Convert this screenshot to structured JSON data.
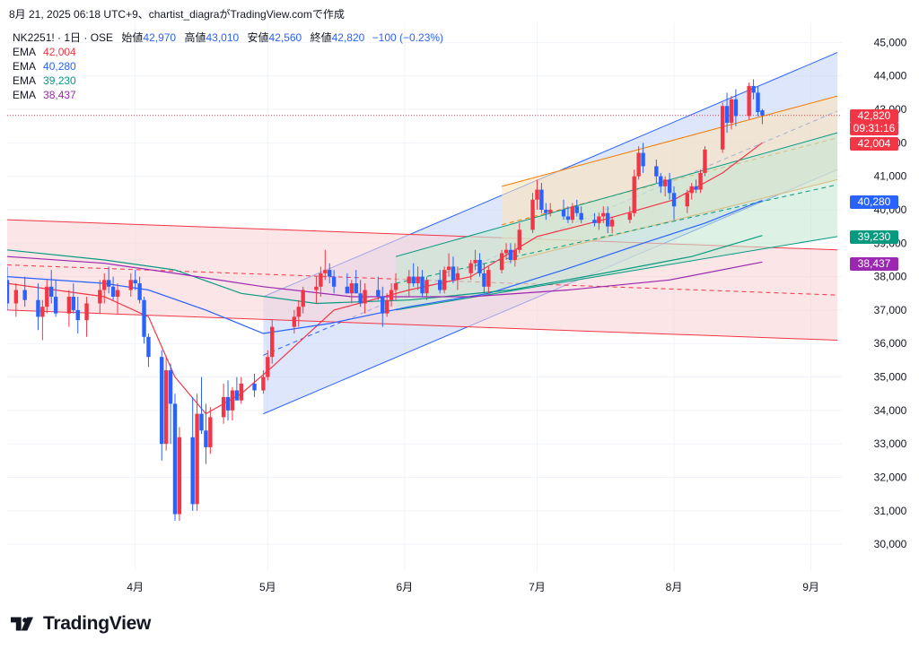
{
  "header": {
    "text": "8月 21, 2025 06:18 UTC+9、chartist_diagraがTradingView.comで作成"
  },
  "symbol": {
    "name": "NK2251! · 1日 · OSE",
    "open_label": "始値",
    "open": "42,970",
    "high_label": "高値",
    "high": "43,010",
    "low_label": "安値",
    "low": "42,560",
    "close_label": "終値",
    "close": "42,820",
    "change": "−100 (−0.23%)"
  },
  "legend": [
    {
      "label": "EMA",
      "value": "42,004",
      "color": "#f23645"
    },
    {
      "label": "EMA",
      "value": "40,280",
      "color": "#2962ff"
    },
    {
      "label": "EMA",
      "value": "39,230",
      "color": "#089981"
    },
    {
      "label": "EMA",
      "value": "38,437",
      "color": "#9c27b0"
    }
  ],
  "price_tags": [
    {
      "text": "42,820",
      "color": "#f23645"
    },
    {
      "text": "09:31:16",
      "color": "#f23645"
    },
    {
      "text": "42,004",
      "color": "#f23645"
    },
    {
      "text": "40,280",
      "color": "#2962ff"
    },
    {
      "text": "39,230",
      "color": "#089981"
    },
    {
      "text": "38,437",
      "color": "#9c27b0"
    }
  ],
  "footer": {
    "brand": "TradingView"
  },
  "chart_data": {
    "type": "candlestick",
    "y_axis": {
      "ticks": [
        30000,
        31000,
        32000,
        33000,
        34000,
        35000,
        36000,
        37000,
        38000,
        39000,
        40000,
        41000,
        42000,
        43000,
        44000,
        45000
      ],
      "tick_labels": [
        "30,000",
        "31,000",
        "32,000",
        "33,000",
        "34,000",
        "35,000",
        "36,000",
        "37,000",
        "38,000",
        "39,000",
        "40,000",
        "41,000",
        "42,000",
        "43,000",
        "44,000",
        "45,000"
      ],
      "ylim": [
        29200,
        45600
      ],
      "position": "right"
    },
    "x_axis": {
      "labels": [
        "4月",
        "5月",
        "6月",
        "7月",
        "8月",
        "9月"
      ],
      "label_dates": [
        "2025-04-01",
        "2025-05-01",
        "2025-06-01",
        "2025-07-01",
        "2025-08-01",
        "2025-09-01"
      ],
      "xlim": [
        "2025-03-03",
        "2025-09-08"
      ]
    },
    "grid": true,
    "last_price": 42820,
    "candles": [
      [
        "2025-03-03",
        37900,
        38300,
        37000,
        37200
      ],
      [
        "2025-03-05",
        37200,
        37800,
        36800,
        37600
      ],
      [
        "2025-03-07",
        37600,
        38000,
        37100,
        37300
      ],
      [
        "2025-03-10",
        37300,
        37800,
        36400,
        36800
      ],
      [
        "2025-03-11",
        36800,
        37300,
        36100,
        37100
      ],
      [
        "2025-03-12",
        37100,
        37900,
        36900,
        37700
      ],
      [
        "2025-03-13",
        37700,
        38200,
        37200,
        37400
      ],
      [
        "2025-03-14",
        37400,
        37900,
        36800,
        36900
      ],
      [
        "2025-03-17",
        36900,
        37600,
        36500,
        37400
      ],
      [
        "2025-03-18",
        37400,
        37800,
        36900,
        37000
      ],
      [
        "2025-03-19",
        37000,
        37400,
        36300,
        36700
      ],
      [
        "2025-03-21",
        36700,
        37400,
        36200,
        37200
      ],
      [
        "2025-03-24",
        37200,
        37900,
        36900,
        37600
      ],
      [
        "2025-03-25",
        37600,
        38100,
        37200,
        37900
      ],
      [
        "2025-03-26",
        37900,
        38300,
        37500,
        37700
      ],
      [
        "2025-03-27",
        37700,
        38000,
        37300,
        37400
      ],
      [
        "2025-03-28",
        37400,
        37800,
        36900,
        37600
      ],
      [
        "2025-03-31",
        37600,
        38100,
        37400,
        37900
      ],
      [
        "2025-04-01",
        37900,
        38200,
        37600,
        37800
      ],
      [
        "2025-04-02",
        37800,
        38000,
        37200,
        37300
      ],
      [
        "2025-04-03",
        37300,
        37400,
        36000,
        36200
      ],
      [
        "2025-04-04",
        36200,
        36300,
        35300,
        35600
      ],
      [
        "2025-04-07",
        35600,
        35800,
        32500,
        33000
      ],
      [
        "2025-04-08",
        33000,
        35600,
        32800,
        35200
      ],
      [
        "2025-04-09",
        35200,
        35400,
        33000,
        34200
      ],
      [
        "2025-04-10",
        34200,
        34500,
        30700,
        30900
      ],
      [
        "2025-04-11",
        30900,
        33500,
        30700,
        33200
      ],
      [
        "2025-04-14",
        33200,
        34400,
        31000,
        31200
      ],
      [
        "2025-04-15",
        31200,
        34500,
        31000,
        33900
      ],
      [
        "2025-04-16",
        33900,
        35000,
        33300,
        33400
      ],
      [
        "2025-04-17",
        33400,
        34200,
        32400,
        32900
      ],
      [
        "2025-04-18",
        32900,
        34100,
        32700,
        33800
      ],
      [
        "2025-04-21",
        33800,
        34800,
        33600,
        34400
      ],
      [
        "2025-04-22",
        34400,
        34900,
        33700,
        34000
      ],
      [
        "2025-04-23",
        34000,
        34700,
        33700,
        34600
      ],
      [
        "2025-04-24",
        34600,
        35000,
        34300,
        34300
      ],
      [
        "2025-04-25",
        34300,
        35000,
        34200,
        34800
      ],
      [
        "2025-04-28",
        34800,
        35100,
        34400,
        34600
      ],
      [
        "2025-04-30",
        34600,
        35200,
        34500,
        35000
      ],
      [
        "2025-05-01",
        35000,
        35800,
        34900,
        35600
      ],
      [
        "2025-05-02",
        35600,
        36700,
        35400,
        36500
      ],
      [
        "2025-05-07",
        36500,
        37000,
        36300,
        36800
      ],
      [
        "2025-05-08",
        36800,
        37300,
        36500,
        37100
      ],
      [
        "2025-05-09",
        37100,
        37700,
        36900,
        37600
      ],
      [
        "2025-05-12",
        37600,
        38000,
        37200,
        37700
      ],
      [
        "2025-05-13",
        37700,
        38300,
        37400,
        38100
      ],
      [
        "2025-05-14",
        38100,
        38800,
        37900,
        38200
      ],
      [
        "2025-05-15",
        38200,
        38400,
        37800,
        38000
      ],
      [
        "2025-05-16",
        38000,
        38200,
        37500,
        37700
      ],
      [
        "2025-05-19",
        37700,
        38100,
        37500,
        37500
      ],
      [
        "2025-05-20",
        37500,
        37900,
        37200,
        37800
      ],
      [
        "2025-05-21",
        37800,
        38200,
        37500,
        37500
      ],
      [
        "2025-05-22",
        37500,
        37900,
        37100,
        37200
      ],
      [
        "2025-05-23",
        37200,
        37800,
        36900,
        37600
      ],
      [
        "2025-05-26",
        37600,
        38000,
        37300,
        37400
      ],
      [
        "2025-05-27",
        37400,
        37700,
        36500,
        36900
      ],
      [
        "2025-05-28",
        36900,
        37500,
        36800,
        37300
      ],
      [
        "2025-05-29",
        37300,
        37800,
        37100,
        37600
      ],
      [
        "2025-05-30",
        37600,
        38100,
        37300,
        37800
      ],
      [
        "2025-06-02",
        37800,
        38200,
        37400,
        38000
      ],
      [
        "2025-06-03",
        38000,
        38400,
        37700,
        37800
      ],
      [
        "2025-06-04",
        37800,
        38300,
        37600,
        38000
      ],
      [
        "2025-06-05",
        38000,
        38200,
        37400,
        37500
      ],
      [
        "2025-06-06",
        37500,
        38000,
        37300,
        37900
      ],
      [
        "2025-06-09",
        37900,
        38200,
        37500,
        37600
      ],
      [
        "2025-06-10",
        37600,
        38300,
        37500,
        38200
      ],
      [
        "2025-06-11",
        38200,
        38700,
        38000,
        38300
      ],
      [
        "2025-06-12",
        38300,
        38600,
        37800,
        37900
      ],
      [
        "2025-06-13",
        37900,
        38300,
        37600,
        38100
      ],
      [
        "2025-06-16",
        38100,
        38500,
        37900,
        38400
      ],
      [
        "2025-06-17",
        38400,
        38800,
        38200,
        38500
      ],
      [
        "2025-06-18",
        38500,
        38700,
        38000,
        38100
      ],
      [
        "2025-06-19",
        38100,
        38400,
        37500,
        37700
      ],
      [
        "2025-06-20",
        37700,
        38300,
        37500,
        38200
      ],
      [
        "2025-06-23",
        38200,
        38800,
        38100,
        38700
      ],
      [
        "2025-06-24",
        38700,
        39000,
        38500,
        38800
      ],
      [
        "2025-06-25",
        38800,
        39000,
        38400,
        38500
      ],
      [
        "2025-06-26",
        38500,
        39000,
        38300,
        38800
      ],
      [
        "2025-06-27",
        38800,
        39600,
        38700,
        39400
      ],
      [
        "2025-06-30",
        39400,
        40500,
        39300,
        40300
      ],
      [
        "2025-07-01",
        40300,
        40900,
        40000,
        40600
      ],
      [
        "2025-07-02",
        40600,
        40800,
        39900,
        40000
      ],
      [
        "2025-07-03",
        40000,
        40200,
        39700,
        39900
      ],
      [
        "2025-07-04",
        39900,
        40200,
        39800,
        40000
      ],
      [
        "2025-07-07",
        40000,
        40300,
        39700,
        39800
      ],
      [
        "2025-07-08",
        39800,
        40100,
        39600,
        39700
      ],
      [
        "2025-07-09",
        39700,
        40200,
        39600,
        40100
      ],
      [
        "2025-07-10",
        40100,
        40300,
        39800,
        39900
      ],
      [
        "2025-07-11",
        39900,
        40100,
        39600,
        39700
      ],
      [
        "2025-07-14",
        39700,
        39900,
        39500,
        39600
      ],
      [
        "2025-07-15",
        39600,
        39900,
        39400,
        39800
      ],
      [
        "2025-07-16",
        39800,
        40100,
        39600,
        39900
      ],
      [
        "2025-07-17",
        39900,
        40100,
        39300,
        39500
      ],
      [
        "2025-07-18",
        39500,
        39800,
        39300,
        39700
      ],
      [
        "2025-07-22",
        39700,
        40100,
        39600,
        39900
      ],
      [
        "2025-07-23",
        39900,
        41200,
        39800,
        41000
      ],
      [
        "2025-07-24",
        41000,
        41900,
        40900,
        41700
      ],
      [
        "2025-07-25",
        41700,
        42000,
        41100,
        41300
      ],
      [
        "2025-07-28",
        41300,
        41500,
        40800,
        41000
      ],
      [
        "2025-07-29",
        41000,
        41100,
        40500,
        40700
      ],
      [
        "2025-07-30",
        40700,
        41000,
        40400,
        40900
      ],
      [
        "2025-07-31",
        40900,
        41100,
        40300,
        40500
      ],
      [
        "2025-08-01",
        40500,
        40700,
        39700,
        40100
      ],
      [
        "2025-08-04",
        40100,
        40600,
        39900,
        40500
      ],
      [
        "2025-08-05",
        40500,
        40800,
        40300,
        40700
      ],
      [
        "2025-08-06",
        40700,
        40900,
        40500,
        40600
      ],
      [
        "2025-08-07",
        40600,
        41200,
        40500,
        41100
      ],
      [
        "2025-08-08",
        41100,
        41900,
        41000,
        41800
      ],
      [
        "2025-08-12",
        41800,
        43200,
        41700,
        43100
      ],
      [
        "2025-08-13",
        43100,
        43500,
        42300,
        42600
      ],
      [
        "2025-08-14",
        42600,
        43400,
        42400,
        43300
      ],
      [
        "2025-08-15",
        43300,
        43600,
        42500,
        42800
      ],
      [
        "2025-08-18",
        42800,
        43800,
        42700,
        43700
      ],
      [
        "2025-08-19",
        43700,
        43900,
        43300,
        43500
      ],
      [
        "2025-08-20",
        43500,
        43700,
        42800,
        42920
      ],
      [
        "2025-08-21",
        42970,
        43010,
        42560,
        42820
      ]
    ],
    "ema_series": [
      {
        "label": "EMA",
        "last": 42004,
        "color": "#f23645",
        "points": [
          [
            "2025-03-03",
            37800
          ],
          [
            "2025-03-25",
            37400
          ],
          [
            "2025-04-04",
            36800
          ],
          [
            "2025-04-10",
            35000
          ],
          [
            "2025-04-17",
            33900
          ],
          [
            "2025-04-25",
            34500
          ],
          [
            "2025-05-02",
            35300
          ],
          [
            "2025-05-16",
            37000
          ],
          [
            "2025-06-02",
            37600
          ],
          [
            "2025-06-16",
            38000
          ],
          [
            "2025-07-01",
            39200
          ],
          [
            "2025-07-16",
            39700
          ],
          [
            "2025-08-01",
            40300
          ],
          [
            "2025-08-12",
            41100
          ],
          [
            "2025-08-21",
            42004
          ]
        ]
      },
      {
        "label": "EMA",
        "last": 40280,
        "color": "#2962ff",
        "points": [
          [
            "2025-03-03",
            38000
          ],
          [
            "2025-03-25",
            37800
          ],
          [
            "2025-04-04",
            37600
          ],
          [
            "2025-04-17",
            37000
          ],
          [
            "2025-04-30",
            36300
          ],
          [
            "2025-05-15",
            36600
          ],
          [
            "2025-06-02",
            37100
          ],
          [
            "2025-06-20",
            37500
          ],
          [
            "2025-07-07",
            38200
          ],
          [
            "2025-07-25",
            39000
          ],
          [
            "2025-08-08",
            39600
          ],
          [
            "2025-08-21",
            40280
          ]
        ]
      },
      {
        "label": "EMA",
        "last": 39230,
        "color": "#089981",
        "points": [
          [
            "2025-03-03",
            38800
          ],
          [
            "2025-03-25",
            38500
          ],
          [
            "2025-04-10",
            38200
          ],
          [
            "2025-04-25",
            37500
          ],
          [
            "2025-05-12",
            37200
          ],
          [
            "2025-06-02",
            37300
          ],
          [
            "2025-06-25",
            37600
          ],
          [
            "2025-07-16",
            38100
          ],
          [
            "2025-08-05",
            38600
          ],
          [
            "2025-08-21",
            39230
          ]
        ]
      },
      {
        "label": "EMA",
        "last": 38437,
        "color": "#9c27b0",
        "points": [
          [
            "2025-03-03",
            38600
          ],
          [
            "2025-03-25",
            38400
          ],
          [
            "2025-04-10",
            38100
          ],
          [
            "2025-04-30",
            37700
          ],
          [
            "2025-05-20",
            37400
          ],
          [
            "2025-06-16",
            37400
          ],
          [
            "2025-07-08",
            37600
          ],
          [
            "2025-07-31",
            37900
          ],
          [
            "2025-08-21",
            38437
          ]
        ]
      }
    ],
    "channels": [
      {
        "name": "",
        "color": "#2962ff",
        "fill": "#c8d6fa",
        "upper": [
          [
            "2025-04-30",
            37400
          ],
          [
            "2025-09-07",
            44700
          ]
        ],
        "lower": [
          [
            "2025-04-30",
            33900
          ],
          [
            "2025-09-07",
            41200
          ]
        ]
      },
      {
        "name": "",
        "color": "#f23645",
        "fill": "#f9d4d6",
        "upper": [
          [
            "2025-03-03",
            39700
          ],
          [
            "2025-09-07",
            38800
          ]
        ],
        "lower": [
          [
            "2025-03-03",
            37000
          ],
          [
            "2025-09-07",
            36100
          ]
        ]
      },
      {
        "name": "",
        "color": "#f57c00",
        "fill": "#fbe3bb",
        "upper": [
          [
            "2025-06-23",
            40700
          ],
          [
            "2025-09-07",
            43400
          ]
        ],
        "lower": [
          [
            "2025-06-23",
            38400
          ],
          [
            "2025-09-07",
            40900
          ]
        ]
      },
      {
        "name": "",
        "color": "#089981",
        "fill": "#c7e8d4",
        "upper": [
          [
            "2025-05-30",
            38600
          ],
          [
            "2025-09-07",
            42300
          ]
        ],
        "lower": [
          [
            "2025-05-30",
            37000
          ],
          [
            "2025-09-07",
            39200
          ]
        ]
      }
    ]
  }
}
